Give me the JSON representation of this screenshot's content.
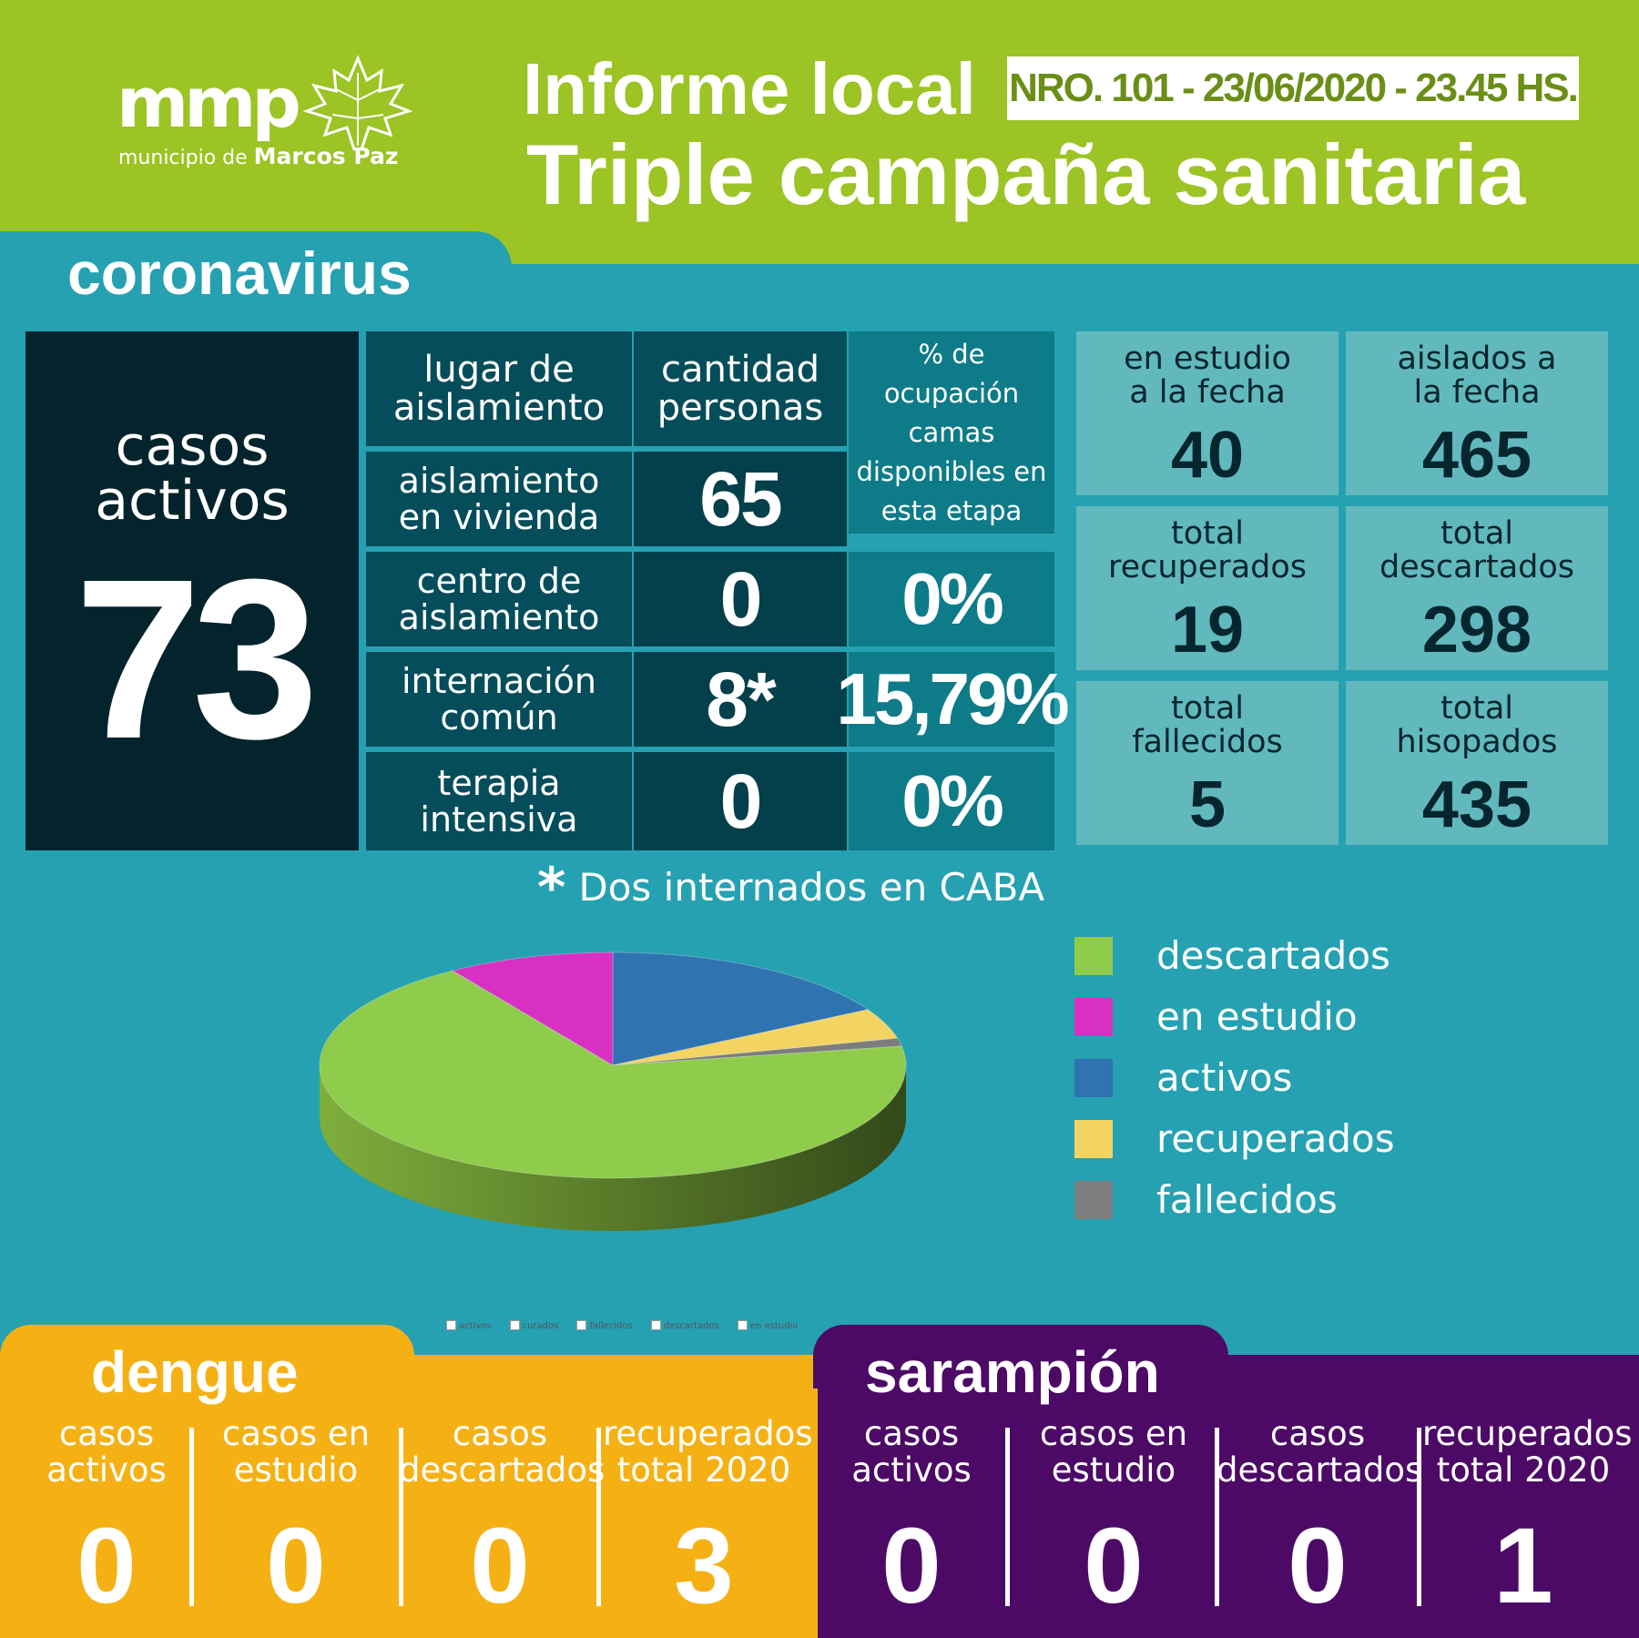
{
  "header": {
    "logo_word": "mmp",
    "logo_sub_prefix": "municipio de",
    "logo_sub_bold": "Marcos Paz",
    "title_line1": "Informe local",
    "report_badge": "NRO. 101 - 23/06/2020 - 23.45 HS.",
    "title_line2": "Triple campaña sanitaria"
  },
  "colors": {
    "header_green": "#9bc424",
    "teal_bg": "#25a1b2",
    "dengue_orange": "#f5b114",
    "sarampion_purple": "#4c0a66"
  },
  "coronavirus": {
    "section_title": "coronavirus",
    "active": {
      "label_line1": "casos",
      "label_line2": "activos",
      "value": "73"
    },
    "table": {
      "headers": {
        "place": "lugar de aislamiento",
        "quantity": "cantidad personas",
        "occupancy": "% de ocupación camas disponibles en esta etapa"
      },
      "rows": [
        {
          "place": "aislamiento en vivienda",
          "quantity": "65",
          "occupancy": ""
        },
        {
          "place": "centro de aislamiento",
          "quantity": "0",
          "occupancy": "0%"
        },
        {
          "place": "internación común",
          "quantity": "8*",
          "occupancy": "15,79%"
        },
        {
          "place": "terapia intensiva",
          "quantity": "0",
          "occupancy": "0%"
        }
      ]
    },
    "stats": [
      {
        "label": "en estudio a la fecha",
        "value": "40"
      },
      {
        "label": "aislados a la fecha",
        "value": "465"
      },
      {
        "label": "total recuperados",
        "value": "19"
      },
      {
        "label": "total descartados",
        "value": "298"
      },
      {
        "label": "total fallecidos",
        "value": "5"
      },
      {
        "label": "total hisopados",
        "value": "435"
      }
    ],
    "footnote_mark": "*",
    "footnote": "Dos internados en CABA"
  },
  "chart_data": {
    "type": "pie",
    "title": "",
    "categories": [
      "descartados",
      "en estudio",
      "activos",
      "recuperados",
      "fallecidos"
    ],
    "values": [
      298,
      40,
      73,
      19,
      5
    ],
    "colors": [
      "#8fcc4c",
      "#d930c4",
      "#2f73b0",
      "#f3d462",
      "#7d7d7d"
    ],
    "legend_position": "right",
    "small_legend": [
      "activos",
      "curados",
      "fallecidos",
      "descartados",
      "en estudio"
    ]
  },
  "dengue": {
    "title": "dengue",
    "columns": [
      {
        "label_line1": "casos",
        "label_line2": "activos",
        "value": "0"
      },
      {
        "label_line1": "casos en",
        "label_line2": "estudio",
        "value": "0"
      },
      {
        "label_line1": "casos",
        "label_line2": "descartados",
        "value": "0"
      },
      {
        "label_line1": "recuperados",
        "label_line2": "total 2020",
        "value": "3"
      }
    ]
  },
  "sarampion": {
    "title": "sarampión",
    "columns": [
      {
        "label_line1": "casos",
        "label_line2": "activos",
        "value": "0"
      },
      {
        "label_line1": "casos en",
        "label_line2": "estudio",
        "value": "0"
      },
      {
        "label_line1": "casos",
        "label_line2": "descartados",
        "value": "0"
      },
      {
        "label_line1": "recuperados",
        "label_line2": "total 2020",
        "value": "1"
      }
    ]
  }
}
